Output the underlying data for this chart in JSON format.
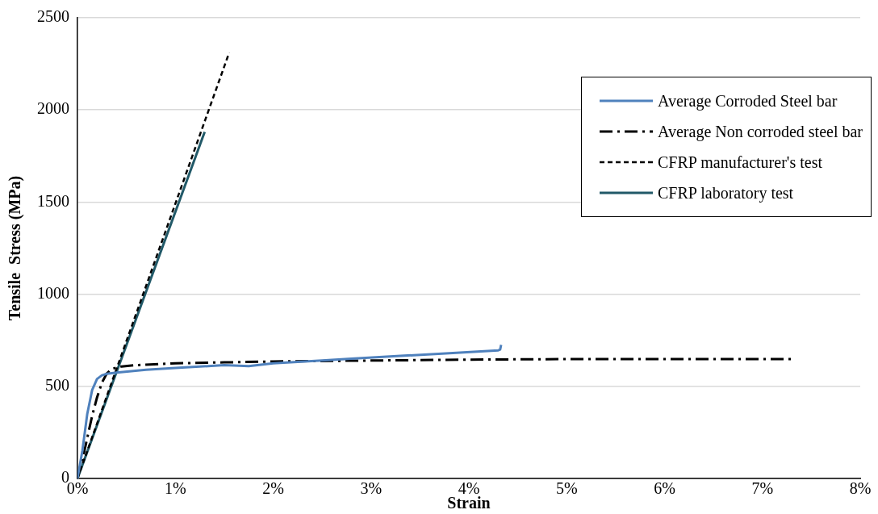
{
  "chart_data": {
    "type": "line",
    "xlabel": "Strain",
    "ylabel": "Tensile  Stress (MPa)",
    "xlim": [
      0,
      8
    ],
    "xticks": [
      {
        "value": 0,
        "label": "0%"
      },
      {
        "value": 1,
        "label": "1%"
      },
      {
        "value": 2,
        "label": "2%"
      },
      {
        "value": 3,
        "label": "3%"
      },
      {
        "value": 4,
        "label": "4%"
      },
      {
        "value": 5,
        "label": "5%"
      },
      {
        "value": 6,
        "label": "6%"
      },
      {
        "value": 7,
        "label": "7%"
      },
      {
        "value": 8,
        "label": "8%"
      }
    ],
    "ylim": [
      0,
      2500
    ],
    "yticks": [
      0,
      500,
      1000,
      1500,
      2000,
      2500
    ],
    "grid": "y",
    "legend": "top right",
    "marker": "none",
    "series": [
      {
        "name": "Average Corroded Steel bar",
        "color": "#4f81bd",
        "line_style": "solid",
        "x": [
          0,
          0.05,
          0.1,
          0.15,
          0.2,
          0.25,
          0.3,
          0.4,
          0.7,
          1.0,
          1.5,
          1.65,
          1.75,
          2.0,
          2.5,
          2.8,
          3.3,
          3.8,
          4.3,
          4.32,
          4.33
        ],
        "values": [
          0,
          150,
          350,
          480,
          540,
          560,
          568,
          575,
          590,
          600,
          615,
          612,
          610,
          625,
          640,
          650,
          665,
          680,
          695,
          700,
          725
        ]
      },
      {
        "name": "Average Non corroded steel bar",
        "color": "#000000",
        "line_style": "dashdot",
        "x": [
          0,
          0.05,
          0.1,
          0.15,
          0.2,
          0.25,
          0.3,
          0.35,
          0.45,
          0.6,
          1.0,
          1.5,
          2.0,
          3.0,
          4.0,
          5.0,
          6.0,
          7.3
        ],
        "values": [
          0,
          100,
          220,
          340,
          440,
          520,
          570,
          595,
          608,
          615,
          625,
          630,
          635,
          640,
          645,
          648,
          648,
          648
        ]
      },
      {
        "name": "CFRP manufacturer's test",
        "color": "#000000",
        "line_style": "dashed",
        "x": [
          0,
          1.55
        ],
        "values": [
          0,
          2310
        ]
      },
      {
        "name": "CFRP laboratory test",
        "color": "#215968",
        "line_style": "solid",
        "x": [
          0,
          1.3
        ],
        "values": [
          0,
          1880
        ]
      }
    ]
  }
}
